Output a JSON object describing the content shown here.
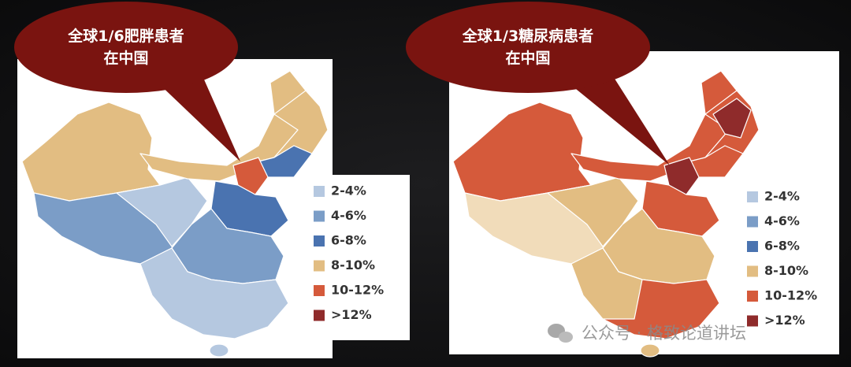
{
  "panels": [
    {
      "callout": [
        "全球1/6肥胖患者",
        "在中国"
      ],
      "legend": [
        {
          "label": "2-4%",
          "color": "#b5c8e0"
        },
        {
          "label": "4-6%",
          "color": "#7b9dc7"
        },
        {
          "label": "6-8%",
          "color": "#4a73b0"
        },
        {
          "label": "8-10%",
          "color": "#e2bd82"
        },
        {
          "label": "10-12%",
          "color": "#d55a3b"
        },
        {
          "label": ">12%",
          "color": "#8f2b2b"
        }
      ]
    },
    {
      "callout": [
        "全球1/3糖尿病患者",
        "在中国"
      ],
      "legend": [
        {
          "label": "2-4%",
          "color": "#b5c8e0"
        },
        {
          "label": "4-6%",
          "color": "#7b9dc7"
        },
        {
          "label": "6-8%",
          "color": "#4a73b0"
        },
        {
          "label": "8-10%",
          "color": "#e2bd82"
        },
        {
          "label": "10-12%",
          "color": "#d55a3b"
        },
        {
          "label": ">12%",
          "color": "#8f2b2b"
        }
      ]
    }
  ],
  "watermark": "公众号 · 格致论道讲坛"
}
